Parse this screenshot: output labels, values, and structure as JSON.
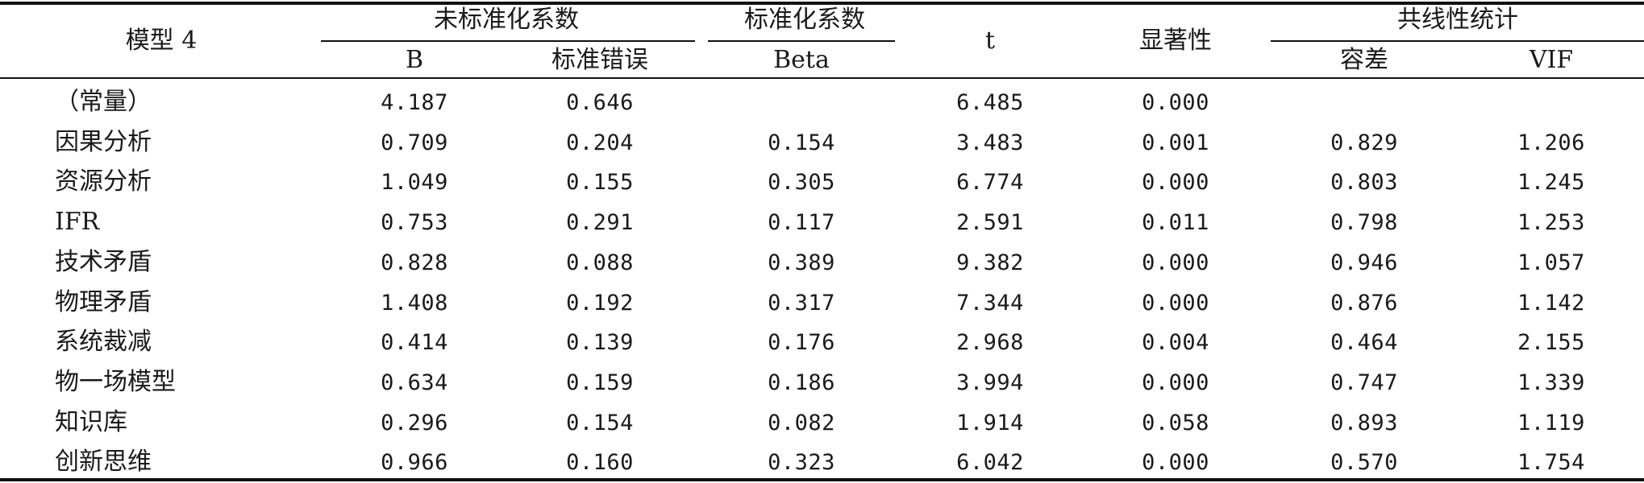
{
  "table": {
    "header": {
      "model": "模型 4",
      "unstd": "未标准化系数",
      "std": "标准化系数",
      "t": "t",
      "sig": "显著性",
      "collinear": "共线性统计",
      "b": "B",
      "se": "标准错误",
      "beta": "Beta",
      "tol": "容差",
      "vif": "VIF"
    },
    "rows": [
      {
        "name": "（常量）",
        "b": "4.187",
        "se": "0.646",
        "beta": "",
        "t": "6.485",
        "sig": "0.000",
        "tol": "",
        "vif": ""
      },
      {
        "name": "因果分析",
        "b": "0.709",
        "se": "0.204",
        "beta": "0.154",
        "t": "3.483",
        "sig": "0.001",
        "tol": "0.829",
        "vif": "1.206"
      },
      {
        "name": "资源分析",
        "b": "1.049",
        "se": "0.155",
        "beta": "0.305",
        "t": "6.774",
        "sig": "0.000",
        "tol": "0.803",
        "vif": "1.245"
      },
      {
        "name": "IFR",
        "b": "0.753",
        "se": "0.291",
        "beta": "0.117",
        "t": "2.591",
        "sig": "0.011",
        "tol": "0.798",
        "vif": "1.253"
      },
      {
        "name": "技术矛盾",
        "b": "0.828",
        "se": "0.088",
        "beta": "0.389",
        "t": "9.382",
        "sig": "0.000",
        "tol": "0.946",
        "vif": "1.057"
      },
      {
        "name": "物理矛盾",
        "b": "1.408",
        "se": "0.192",
        "beta": "0.317",
        "t": "7.344",
        "sig": "0.000",
        "tol": "0.876",
        "vif": "1.142"
      },
      {
        "name": "系统裁减",
        "b": "0.414",
        "se": "0.139",
        "beta": "0.176",
        "t": "2.968",
        "sig": "0.004",
        "tol": "0.464",
        "vif": "2.155"
      },
      {
        "name": "物一场模型",
        "b": "0.634",
        "se": "0.159",
        "beta": "0.186",
        "t": "3.994",
        "sig": "0.000",
        "tol": "0.747",
        "vif": "1.339"
      },
      {
        "name": "知识库",
        "b": "0.296",
        "se": "0.154",
        "beta": "0.082",
        "t": "1.914",
        "sig": "0.058",
        "tol": "0.893",
        "vif": "1.119"
      },
      {
        "name": "创新思维",
        "b": "0.966",
        "se": "0.160",
        "beta": "0.323",
        "t": "6.042",
        "sig": "0.000",
        "tol": "0.570",
        "vif": "1.754"
      }
    ]
  }
}
